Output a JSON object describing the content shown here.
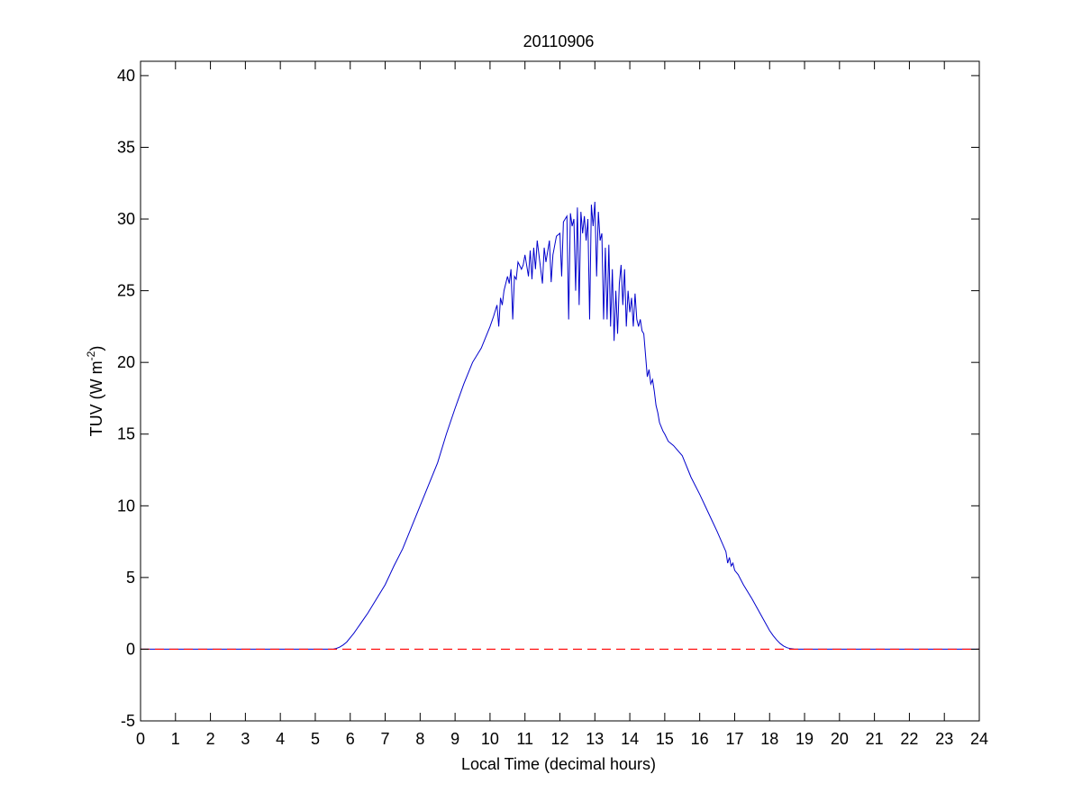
{
  "chart_data": {
    "type": "line",
    "title": "20110906",
    "xlabel": "Local Time (decimal hours)",
    "ylabel": {
      "text": "TUV (W m",
      "superscript": "-2",
      "suffix": ")"
    },
    "xlim": [
      0,
      24
    ],
    "ylim": [
      -5,
      41
    ],
    "xticks": [
      0,
      1,
      2,
      3,
      4,
      5,
      6,
      7,
      8,
      9,
      10,
      11,
      12,
      13,
      14,
      15,
      16,
      17,
      18,
      19,
      20,
      21,
      22,
      23,
      24
    ],
    "yticks": [
      -5,
      0,
      5,
      10,
      15,
      20,
      25,
      30,
      35,
      40
    ],
    "grid": false,
    "legend": "none",
    "series": [
      {
        "style": "solid",
        "color": "#0000cc",
        "x": [
          0,
          5.5,
          5.6,
          5.7,
          5.8,
          5.9,
          6.0,
          6.1,
          6.2,
          6.3,
          6.4,
          6.5,
          6.75,
          7.0,
          7.25,
          7.5,
          7.75,
          8.0,
          8.25,
          8.5,
          8.75,
          9.0,
          9.25,
          9.5,
          9.75,
          10.0,
          10.1,
          10.2,
          10.25,
          10.3,
          10.35,
          10.4,
          10.5,
          10.55,
          10.6,
          10.65,
          10.7,
          10.75,
          10.8,
          10.9,
          10.95,
          11.0,
          11.1,
          11.15,
          11.2,
          11.25,
          11.3,
          11.35,
          11.4,
          11.5,
          11.55,
          11.6,
          11.7,
          11.75,
          11.8,
          11.9,
          12.0,
          12.05,
          12.1,
          12.2,
          12.25,
          12.3,
          12.35,
          12.4,
          12.45,
          12.5,
          12.55,
          12.6,
          12.65,
          12.7,
          12.75,
          12.8,
          12.85,
          12.9,
          12.95,
          13.0,
          13.05,
          13.1,
          13.15,
          13.2,
          13.25,
          13.3,
          13.35,
          13.4,
          13.45,
          13.5,
          13.55,
          13.6,
          13.65,
          13.7,
          13.75,
          13.8,
          13.85,
          13.9,
          13.95,
          14.0,
          14.05,
          14.1,
          14.15,
          14.2,
          14.25,
          14.3,
          14.35,
          14.4,
          14.45,
          14.5,
          14.55,
          14.6,
          14.65,
          14.7,
          14.75,
          14.8,
          14.85,
          14.9,
          14.95,
          15.0,
          15.1,
          15.25,
          15.5,
          15.75,
          16.0,
          16.25,
          16.5,
          16.75,
          16.8,
          16.85,
          16.9,
          16.95,
          17.0,
          17.1,
          17.25,
          17.5,
          17.75,
          18.0,
          18.1,
          18.2,
          18.3,
          18.4,
          18.5,
          18.6,
          18.7,
          18.8,
          24
        ],
        "y": [
          0,
          0,
          0.05,
          0.15,
          0.3,
          0.5,
          0.8,
          1.1,
          1.45,
          1.8,
          2.15,
          2.5,
          3.5,
          4.5,
          5.8,
          7.0,
          8.5,
          10.0,
          11.5,
          13.0,
          15.0,
          16.8,
          18.5,
          20.0,
          21.0,
          22.5,
          23.2,
          24.0,
          22.5,
          24.5,
          24.0,
          25.0,
          26.0,
          25.5,
          26.5,
          23.0,
          26.0,
          25.8,
          27.0,
          26.5,
          26.8,
          27.5,
          26.0,
          27.8,
          25.8,
          28.0,
          26.5,
          28.5,
          27.5,
          25.5,
          28.0,
          27.0,
          28.5,
          25.6,
          27.5,
          28.8,
          29.0,
          26.0,
          29.8,
          30.2,
          23.0,
          30.4,
          29.5,
          30.0,
          25.0,
          30.8,
          24.0,
          30.5,
          29.0,
          30.2,
          28.5,
          30.0,
          23.0,
          31.0,
          29.5,
          31.2,
          26.0,
          30.5,
          28.5,
          29.0,
          23.0,
          28.0,
          23.0,
          28.2,
          22.5,
          26.5,
          21.5,
          25.0,
          22.0,
          25.5,
          26.8,
          24.0,
          26.5,
          22.5,
          25.0,
          23.5,
          24.5,
          22.5,
          24.8,
          23.0,
          22.5,
          23.0,
          22.2,
          22.0,
          20.5,
          19.0,
          19.5,
          18.5,
          18.8,
          18.0,
          17.0,
          16.5,
          15.8,
          15.5,
          15.2,
          15.0,
          14.5,
          14.2,
          13.5,
          12.0,
          10.8,
          9.5,
          8.2,
          6.8,
          6.0,
          6.4,
          5.8,
          6.0,
          5.5,
          5.2,
          4.5,
          3.5,
          2.4,
          1.3,
          0.95,
          0.65,
          0.4,
          0.22,
          0.1,
          0.04,
          0.01,
          0,
          0
        ]
      },
      {
        "style": "dashed",
        "color": "#ff0000",
        "x": [
          0,
          24
        ],
        "y": [
          0,
          0
        ]
      }
    ]
  }
}
